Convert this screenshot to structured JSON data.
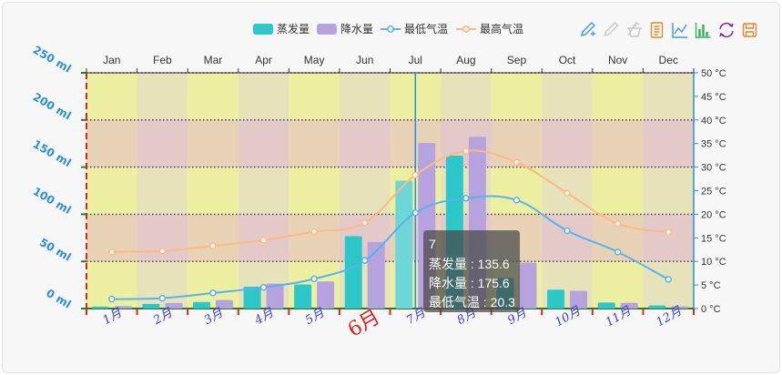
{
  "chart_data": {
    "type": "bar",
    "categories": [
      "Jan",
      "Feb",
      "Mar",
      "Apr",
      "May",
      "Jun",
      "Jul",
      "Aug",
      "Sep",
      "Oct",
      "Nov",
      "Dec"
    ],
    "bottom_categories": [
      "1月",
      "2月",
      "3月",
      "4月",
      "5月",
      "6月",
      "7月",
      "8月",
      "9月",
      "10月",
      "11月",
      "12月"
    ],
    "highlight_bottom_category": "6月",
    "y_left": {
      "ylim": [
        0,
        250
      ],
      "ticks": [
        0,
        50,
        100,
        150,
        200,
        250
      ],
      "unit": "ml"
    },
    "y_right": {
      "ylim": [
        0,
        50
      ],
      "ticks": [
        0,
        5,
        10,
        15,
        20,
        25,
        30,
        35,
        40,
        45,
        50
      ],
      "unit": "°C"
    },
    "series": [
      {
        "name": "蒸发量",
        "type": "bar",
        "axis": "left",
        "color": "#2ec7c9",
        "values": [
          2.0,
          4.9,
          7.0,
          23.2,
          25.6,
          76.7,
          135.6,
          162.2,
          32.6,
          20.0,
          6.4,
          3.3
        ]
      },
      {
        "name": "降水量",
        "type": "bar",
        "axis": "left",
        "color": "#b6a2de",
        "values": [
          2.6,
          5.9,
          9.0,
          26.4,
          28.7,
          70.7,
          175.6,
          182.2,
          48.7,
          18.8,
          6.0,
          2.3
        ]
      },
      {
        "name": "最低气温",
        "type": "line",
        "axis": "right",
        "color": "#5ab1ef",
        "values": [
          2.0,
          2.2,
          3.3,
          4.5,
          6.3,
          10.2,
          20.3,
          23.4,
          23.0,
          16.5,
          12.0,
          6.2
        ]
      },
      {
        "name": "最高气温",
        "type": "line",
        "axis": "right",
        "color": "#ffb980",
        "values": [
          12.0,
          12.2,
          13.3,
          14.5,
          16.3,
          18.2,
          28.3,
          33.4,
          31.0,
          24.5,
          18.0,
          16.2
        ]
      }
    ],
    "tooltip": {
      "title": "7",
      "rows": [
        {
          "label": "蒸发量",
          "value": "135.6"
        },
        {
          "label": "降水量",
          "value": "175.6"
        },
        {
          "label": "最低气温",
          "value": "20.3"
        }
      ]
    },
    "legend_position": "top-center",
    "grid": true
  },
  "toolbox": {
    "icons": [
      {
        "name": "mark-icon",
        "color": "#3a9bdc"
      },
      {
        "name": "mark-undo-icon",
        "color": "#c8c8c8"
      },
      {
        "name": "mark-clear-icon",
        "color": "#c8c8c8"
      },
      {
        "name": "data-view-icon",
        "color": "#e08a2f"
      },
      {
        "name": "line-chart-icon",
        "color": "#3a9bdc"
      },
      {
        "name": "bar-chart-icon",
        "color": "#2fb35b"
      },
      {
        "name": "restore-icon",
        "color": "#7b1f8a"
      },
      {
        "name": "save-image-icon",
        "color": "#e08a2f"
      }
    ]
  }
}
